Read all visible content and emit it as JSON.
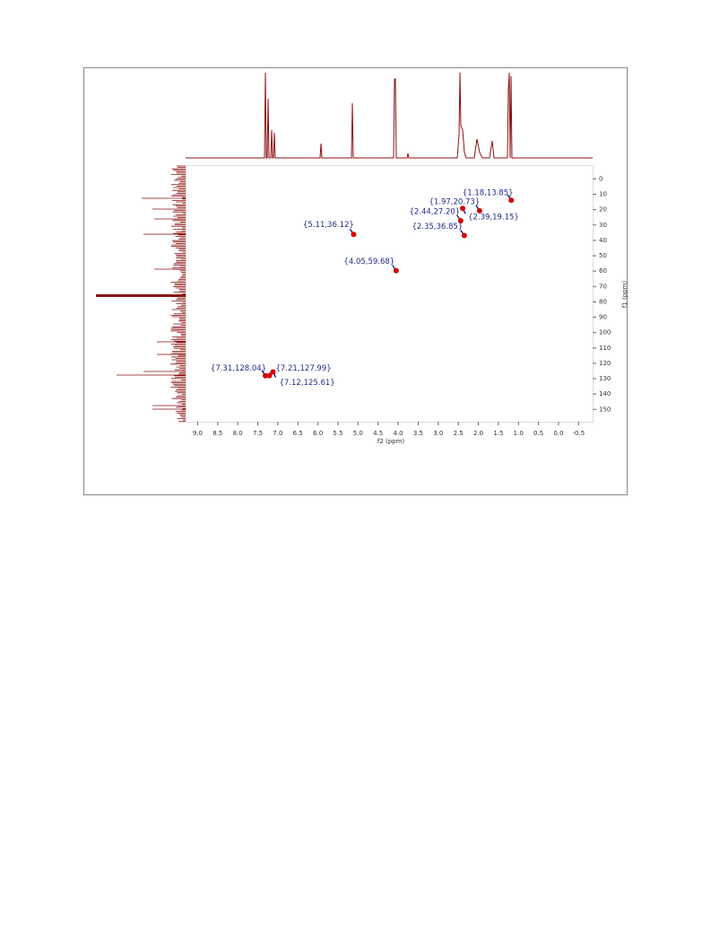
{
  "chart_data": {
    "type": "scatter",
    "x_label": "f2 (ppm)",
    "y_label": "f1 (ppm)",
    "x": [
      1.18,
      1.97,
      2.44,
      2.39,
      2.35,
      5.11,
      4.05,
      7.31,
      7.21,
      7.12
    ],
    "values": [
      13.85,
      20.73,
      27.2,
      19.15,
      36.85,
      36.12,
      59.68,
      128.04,
      127.99,
      125.61
    ],
    "value_labels": [
      "{1.18,13.85}",
      "{1.97,20.73}",
      "{2.44,27.20}",
      "{2.39,19.15}",
      "{2.35,36.85}",
      "{5.11,36.12}",
      "{4.05,59.68}",
      "{7.31,128.04}",
      "{7.21,127.99}",
      "{7.12,125.61}"
    ],
    "color": "#d40000",
    "label_color": "#1f2a8c",
    "xlim": [
      9.3,
      -0.85
    ],
    "ylim": [
      -9,
      158
    ],
    "xticks": [
      {
        "value": 9,
        "label": "9.0"
      },
      8.5,
      {
        "value": 8,
        "label": "8.0"
      },
      7.5,
      {
        "value": 7,
        "label": "7.0"
      },
      6.5,
      {
        "value": 6,
        "label": "6.0"
      },
      5.5,
      {
        "value": 5,
        "label": "5.0"
      },
      4.5,
      {
        "value": 4,
        "label": "4.0"
      },
      3.5,
      {
        "value": 3,
        "label": "3.0"
      },
      2.5,
      {
        "value": 2,
        "label": "2.0"
      },
      1.5,
      {
        "value": 1,
        "label": "1.0"
      },
      0.5,
      {
        "value": 0,
        "label": "0.0"
      },
      -0.5
    ],
    "yticks": [
      0,
      10,
      20,
      30,
      40,
      50,
      60,
      70,
      80,
      90,
      100,
      110,
      120,
      130,
      140,
      150
    ]
  }
}
